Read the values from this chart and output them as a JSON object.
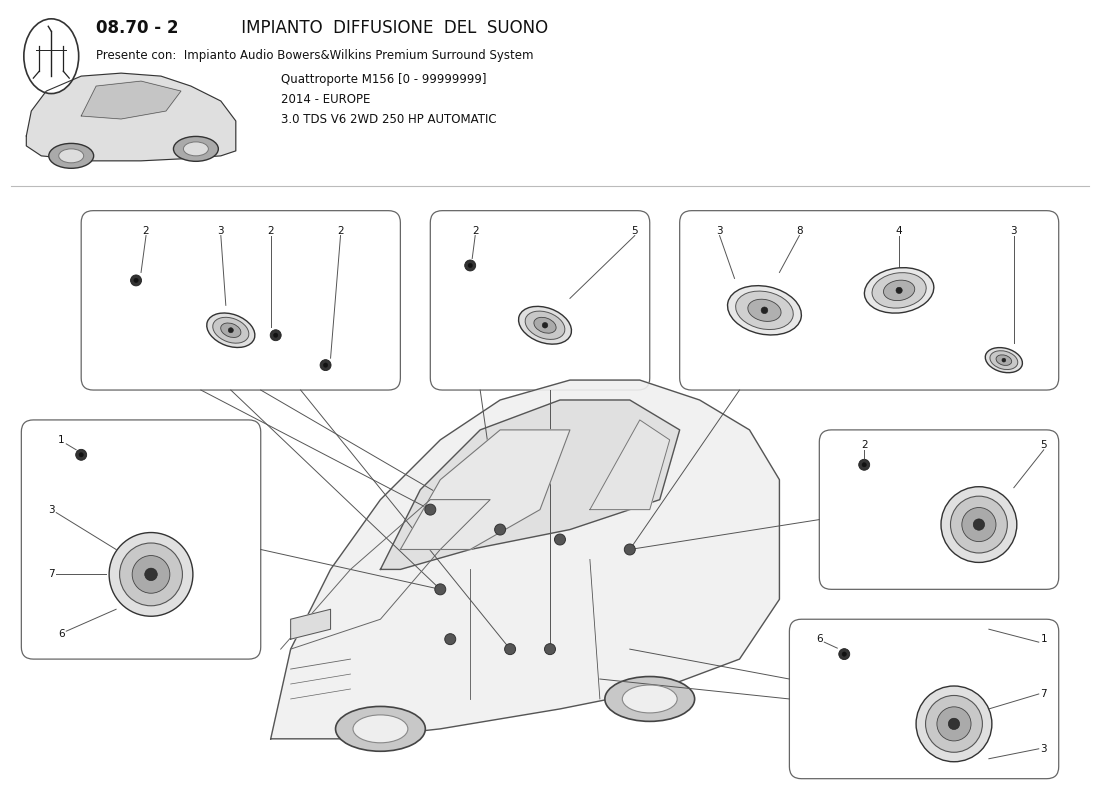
{
  "bg": "#ffffff",
  "text_color": "#111111",
  "line_color": "#555555",
  "box_edge": "#666666",
  "title_bold": "08.70 - 2",
  "title_rest": " IMPIANTO  DIFFUSIONE  DEL  SUONO",
  "subtitle1": "Presente con:  Impianto Audio Bowers&Wilkins Premium Surround System",
  "subtitle2": "Quattroporte M156 [0 - 99999999]",
  "subtitle3": "2014 - EUROPE",
  "subtitle4": "3.0 TDS V6 2WD 250 HP AUTOMATIC"
}
